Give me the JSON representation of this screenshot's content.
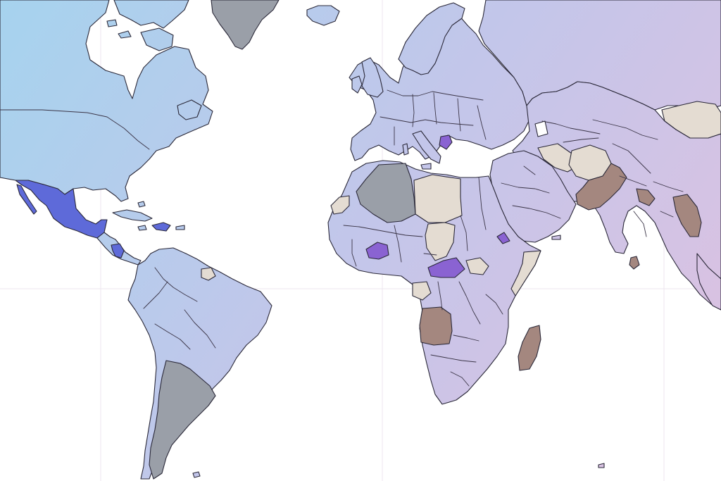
{
  "map": {
    "projection": "mercator",
    "gradient": {
      "start": "#a6d3ee",
      "mid": "#c3c6ea",
      "end": "#dfc1e0"
    },
    "status_colors": {
      "very_high": "#5e6ad9",
      "high": "#8a63d2",
      "medium": "#9a9fa8",
      "low": "#e4dcd2",
      "lowest": "#a4877f"
    },
    "regions": [
      {
        "name": "mexico",
        "level": "very_high"
      },
      {
        "name": "haiti",
        "level": "very_high"
      },
      {
        "name": "nicaragua",
        "level": "very_high"
      },
      {
        "name": "bosnia-herzegovina",
        "level": "high"
      },
      {
        "name": "burkina-faso",
        "level": "high"
      },
      {
        "name": "central-african-republic",
        "level": "high"
      },
      {
        "name": "eritrea",
        "level": "high"
      },
      {
        "name": "greenland",
        "level": "medium"
      },
      {
        "name": "algeria",
        "level": "medium"
      },
      {
        "name": "argentina",
        "level": "medium"
      },
      {
        "name": "libya",
        "level": "low"
      },
      {
        "name": "chad",
        "level": "low"
      },
      {
        "name": "south-sudan",
        "level": "low"
      },
      {
        "name": "somalia",
        "level": "low"
      },
      {
        "name": "afghanistan",
        "level": "low"
      },
      {
        "name": "iraq",
        "level": "low"
      },
      {
        "name": "western-sahara",
        "level": "low"
      },
      {
        "name": "gabon",
        "level": "low"
      },
      {
        "name": "suriname",
        "level": "low"
      },
      {
        "name": "mongolia",
        "level": "low"
      },
      {
        "name": "pakistan",
        "level": "lowest"
      },
      {
        "name": "myanmar",
        "level": "lowest"
      },
      {
        "name": "angola",
        "level": "lowest"
      },
      {
        "name": "madagascar",
        "level": "lowest"
      },
      {
        "name": "bangladesh",
        "level": "lowest"
      },
      {
        "name": "sri-lanka",
        "level": "lowest"
      }
    ]
  }
}
